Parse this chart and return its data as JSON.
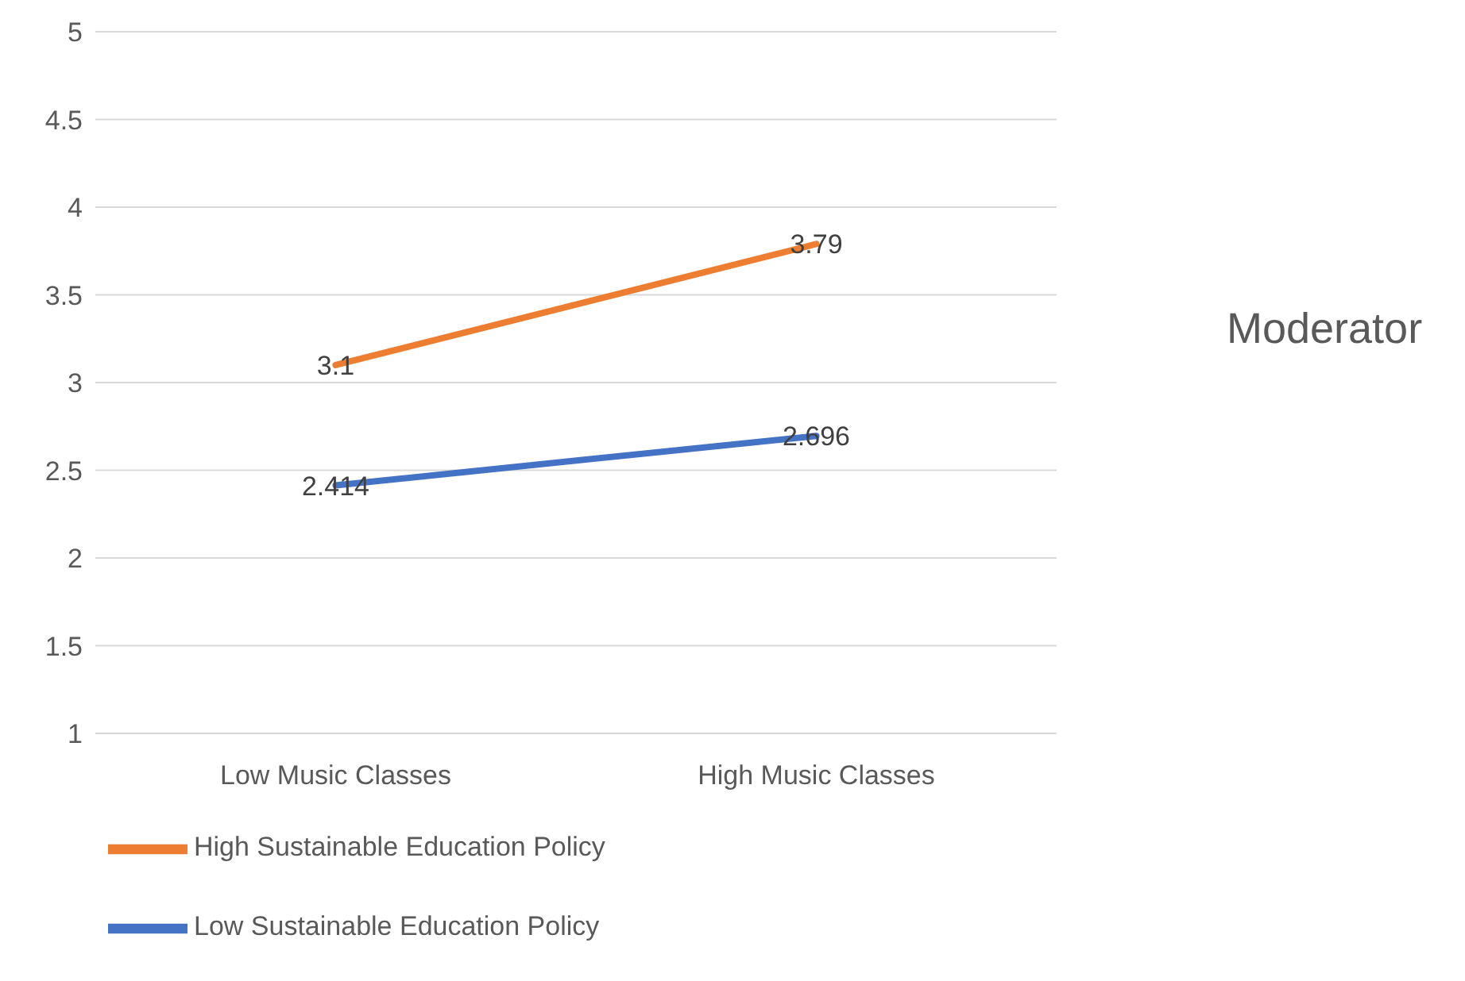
{
  "chart_data": {
    "type": "line",
    "categories": [
      "Low Music Classes",
      "High Music Classes"
    ],
    "series": [
      {
        "name": "Low Sustainable Education Policy",
        "color": "#4472c4",
        "values": [
          2.414,
          2.696
        ]
      },
      {
        "name": "High Sustainable Education Policy",
        "color": "#ed7d31",
        "values": [
          3.1,
          3.79
        ]
      }
    ],
    "ylim": [
      1,
      5
    ],
    "yticks": [
      1,
      1.5,
      2,
      2.5,
      3,
      3.5,
      4,
      4.5,
      5
    ],
    "grid": "y",
    "legend": "bottom",
    "marker": "none",
    "data_labels": true,
    "annotations": [
      "Moderator"
    ]
  }
}
